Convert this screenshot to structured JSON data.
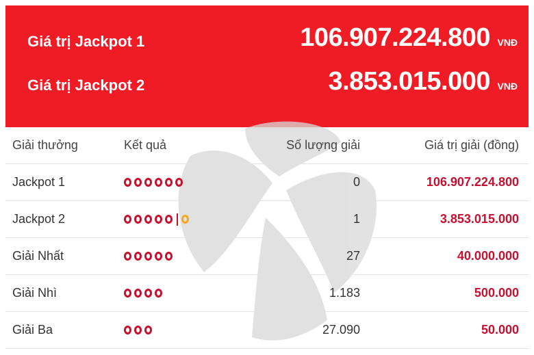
{
  "jackpot": {
    "items": [
      {
        "label": "Giá trị Jackpot 1",
        "value": "106.907.224.800",
        "currency": "VNĐ"
      },
      {
        "label": "Giá trị Jackpot 2",
        "value": "3.853.015.000",
        "currency": "VNĐ"
      }
    ],
    "color": "#ef1c25"
  },
  "table": {
    "headers": {
      "prize": "Giải thưởng",
      "result": "Kết quả",
      "count": "Số lượng giải",
      "value": "Giá trị giải (đồng)"
    },
    "rows": [
      {
        "prize": "Jackpot 1",
        "balls": 6,
        "special": false,
        "count": "0",
        "value": "106.907.224.800"
      },
      {
        "prize": "Jackpot 2",
        "balls": 5,
        "special": true,
        "count": "1",
        "value": "3.853.015.000"
      },
      {
        "prize": "Giải Nhất",
        "balls": 5,
        "special": false,
        "count": "27",
        "value": "40.000.000"
      },
      {
        "prize": "Giải Nhì",
        "balls": 4,
        "special": false,
        "count": "1.183",
        "value": "500.000"
      },
      {
        "prize": "Giải Ba",
        "balls": 3,
        "special": false,
        "count": "27.090",
        "value": "50.000"
      }
    ],
    "accent_color": "#c8102e",
    "special_ball_color": "#f4a81d"
  }
}
